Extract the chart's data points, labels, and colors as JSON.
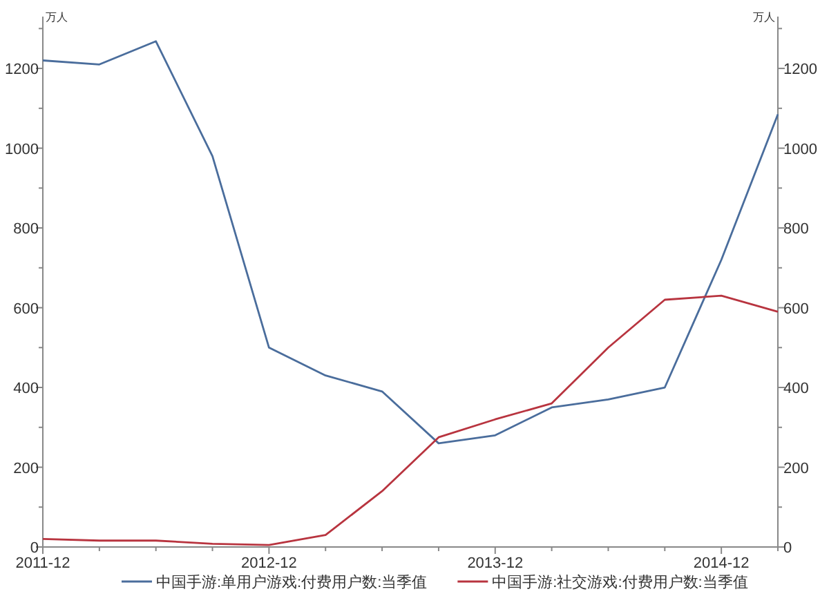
{
  "chart_data": {
    "type": "line",
    "ylabel": "万人",
    "y2label": "万人",
    "categories": [
      "2011-12",
      null,
      null,
      null,
      "2012-12",
      null,
      null,
      null,
      "2013-12",
      null,
      null,
      null,
      "2014-12",
      null
    ],
    "series": [
      {
        "name": "中国手游:单用户游戏:付费用户数:当季值",
        "color": "#4a6d9c",
        "values": [
          1220,
          1210,
          1268,
          980,
          500,
          430,
          390,
          260,
          280,
          350,
          370,
          400,
          720,
          1085
        ]
      },
      {
        "name": "中国手游:社交游戏:付费用户数:当季值",
        "color": "#b8343f",
        "values": [
          20,
          16,
          16,
          8,
          5,
          30,
          140,
          275,
          320,
          360,
          500,
          620,
          630,
          590
        ]
      }
    ],
    "ylim": [
      0,
      1330
    ],
    "yticks": [
      0,
      {
        "value": 100,
        "label": null
      },
      200,
      {
        "value": 300,
        "label": null
      },
      400,
      {
        "value": 500,
        "label": null
      },
      600,
      {
        "value": 700,
        "label": null
      },
      800,
      {
        "value": 900,
        "label": null
      },
      1000,
      {
        "value": 1100,
        "label": null
      },
      1200,
      {
        "value": 1300,
        "label": null
      }
    ],
    "y2lim": [
      0,
      1330
    ],
    "y2ticks": [
      0,
      {
        "value": 100,
        "label": null
      },
      200,
      {
        "value": 300,
        "label": null
      },
      400,
      {
        "value": 500,
        "label": null
      },
      600,
      {
        "value": 700,
        "label": null
      },
      800,
      {
        "value": 900,
        "label": null
      },
      1000,
      {
        "value": 1100,
        "label": null
      },
      1200,
      {
        "value": 1300,
        "label": null
      }
    ],
    "grid": false,
    "legend": "bottom",
    "marker": "none",
    "line_style": "solid"
  }
}
